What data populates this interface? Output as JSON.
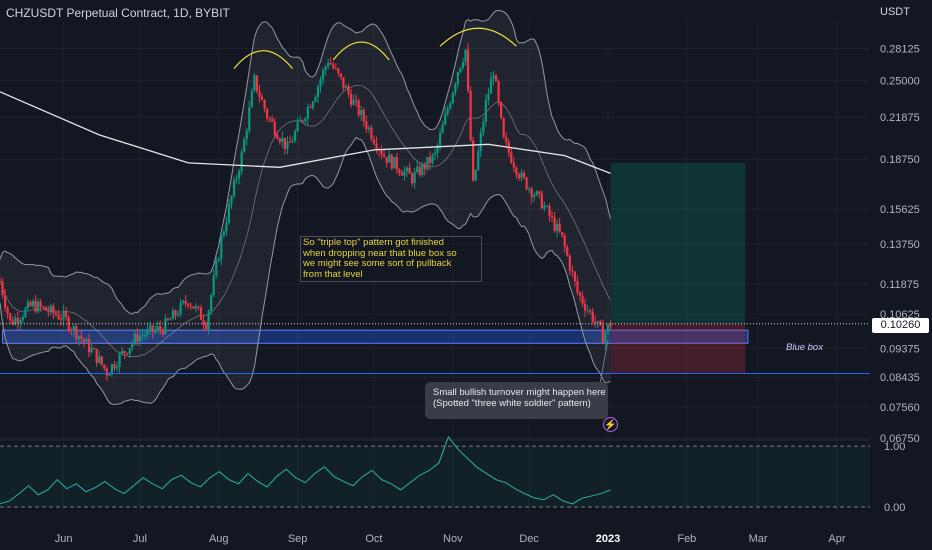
{
  "header": {
    "title": "CHZUSDT Perpetual Contract, 1D, BYBIT",
    "currency": "USDT"
  },
  "chart_data": {
    "type": "candlestick",
    "title": "CHZUSDT Perpetual Contract, 1D, BYBIT",
    "ylabel": "USDT",
    "y_scale": "log",
    "ylim": [
      0.067,
      0.31
    ],
    "y_ticks": [
      "0.28125",
      "0.25000",
      "0.21875",
      "0.18750",
      "0.15625",
      "0.13750",
      "0.11875",
      "0.10625",
      "0.09375",
      "0.08435",
      "0.07560",
      "0.06750"
    ],
    "x_ticks": [
      "Jun",
      "Jul",
      "Aug",
      "Sep",
      "Oct",
      "Nov",
      "Dec",
      "2023",
      "Feb",
      "Mar",
      "Apr"
    ],
    "x_range": [
      "2022-05-07",
      "2023-04-14"
    ],
    "last_price": "0.10260",
    "price_series": [
      {
        "date": "2022-05-07",
        "value": 0.12
      },
      {
        "date": "2022-05-11",
        "value": 0.103
      },
      {
        "date": "2022-05-20",
        "value": 0.11
      },
      {
        "date": "2022-06-01",
        "value": 0.105
      },
      {
        "date": "2022-06-13",
        "value": 0.092
      },
      {
        "date": "2022-06-18",
        "value": 0.086
      },
      {
        "date": "2022-06-30",
        "value": 0.098
      },
      {
        "date": "2022-07-10",
        "value": 0.101
      },
      {
        "date": "2022-07-20",
        "value": 0.112
      },
      {
        "date": "2022-07-27",
        "value": 0.103
      },
      {
        "date": "2022-08-02",
        "value": 0.14
      },
      {
        "date": "2022-08-10",
        "value": 0.19
      },
      {
        "date": "2022-08-15",
        "value": 0.25
      },
      {
        "date": "2022-08-20",
        "value": 0.22
      },
      {
        "date": "2022-08-28",
        "value": 0.195
      },
      {
        "date": "2022-09-08",
        "value": 0.24
      },
      {
        "date": "2022-09-13",
        "value": 0.27
      },
      {
        "date": "2022-09-18",
        "value": 0.25
      },
      {
        "date": "2022-09-26",
        "value": 0.22
      },
      {
        "date": "2022-10-05",
        "value": 0.19
      },
      {
        "date": "2022-10-16",
        "value": 0.175
      },
      {
        "date": "2022-10-25",
        "value": 0.19
      },
      {
        "date": "2022-11-03",
        "value": 0.26
      },
      {
        "date": "2022-11-06",
        "value": 0.28
      },
      {
        "date": "2022-11-09",
        "value": 0.17
      },
      {
        "date": "2022-11-14",
        "value": 0.23
      },
      {
        "date": "2022-11-17",
        "value": 0.26
      },
      {
        "date": "2022-11-21",
        "value": 0.2
      },
      {
        "date": "2022-11-28",
        "value": 0.175
      },
      {
        "date": "2022-12-06",
        "value": 0.16
      },
      {
        "date": "2022-12-14",
        "value": 0.14
      },
      {
        "date": "2022-12-20",
        "value": 0.115
      },
      {
        "date": "2022-12-26",
        "value": 0.105
      },
      {
        "date": "2022-12-30",
        "value": 0.098
      },
      {
        "date": "2023-01-02",
        "value": 0.1026
      }
    ],
    "moving_average": [
      {
        "date": "2022-05-07",
        "value": 0.24
      },
      {
        "date": "2022-06-15",
        "value": 0.205
      },
      {
        "date": "2022-07-20",
        "value": 0.185
      },
      {
        "date": "2022-08-25",
        "value": 0.182
      },
      {
        "date": "2022-10-01",
        "value": 0.194
      },
      {
        "date": "2022-11-15",
        "value": 0.198
      },
      {
        "date": "2022-12-15",
        "value": 0.19
      },
      {
        "date": "2023-01-02",
        "value": 0.178
      }
    ],
    "horizontal_levels": [
      {
        "value": 0.1026,
        "style": "dotted",
        "color": "#d1d4dc"
      },
      {
        "value": 0.0855,
        "style": "solid",
        "color": "#2962ff"
      }
    ],
    "zones": [
      {
        "label": "Blue box",
        "from": 0.0955,
        "to": 0.1002,
        "start": "2022-05-08",
        "end": "2023-02-25",
        "color": "#2962ff"
      },
      {
        "label": "",
        "from": 0.1026,
        "to": 0.185,
        "start": "2023-01-02",
        "end": "2023-02-24",
        "color": "#089981"
      },
      {
        "label": "",
        "from": 0.0855,
        "to": 0.1026,
        "start": "2023-01-02",
        "end": "2023-02-24",
        "color": "#f23645"
      }
    ],
    "oscillator": {
      "ylim": [
        -0.05,
        1.1
      ],
      "levels": [
        "1.00",
        "0.00"
      ],
      "values": [
        0.05,
        0.1,
        0.22,
        0.35,
        0.2,
        0.28,
        0.45,
        0.3,
        0.38,
        0.25,
        0.32,
        0.42,
        0.3,
        0.22,
        0.35,
        0.48,
        0.38,
        0.3,
        0.45,
        0.52,
        0.4,
        0.33,
        0.48,
        0.58,
        0.45,
        0.38,
        0.55,
        0.42,
        0.33,
        0.5,
        0.62,
        0.48,
        0.4,
        0.55,
        0.66,
        0.5,
        0.42,
        0.35,
        0.5,
        0.6,
        0.45,
        0.38,
        0.28,
        0.4,
        0.52,
        0.6,
        0.72,
        1.15,
        0.95,
        0.8,
        0.65,
        0.55,
        0.45,
        0.4,
        0.3,
        0.22,
        0.15,
        0.12,
        0.2,
        0.1,
        0.05,
        0.14,
        0.18,
        0.22,
        0.28
      ]
    }
  },
  "annotations": {
    "triple_top_note": [
      "So \"triple top\" pattern got finished",
      "when dropping near that blue box so",
      "we might see some sort of pullback",
      "from that level"
    ],
    "callout": [
      "Small bullish turnover might happen here",
      "(Spotted \"three white soldier\" pattern)"
    ],
    "box_label": "Blue box",
    "flash_icon": "lightning-icon"
  },
  "colors": {
    "background": "#131722",
    "bull": "#089981",
    "bear": "#f23645",
    "arc": "#f7e13b",
    "level": "#2962ff"
  }
}
